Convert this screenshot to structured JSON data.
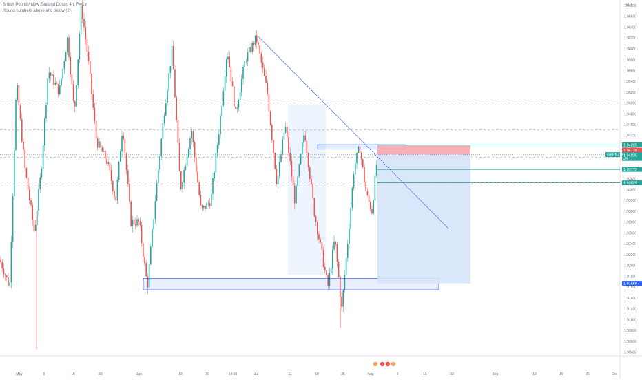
{
  "legend": {
    "title": "British Pound / New Zealand Dollar, 4h, FXCM",
    "indicator": "Round numbers above and below (2)"
  },
  "currency": "NZD",
  "symbol_tag": {
    "symbol": "GBPNZD",
    "price": "1.94045",
    "countdown": "45:17"
  },
  "price_tags": [
    {
      "price": 1.94225,
      "label": "1.94225",
      "color": "#26a69a"
    },
    {
      "price": 1.9413,
      "label": "1.94130",
      "color": "#ef5350"
    },
    {
      "price": 1.94045,
      "label": "1.94045",
      "color": "#26a69a"
    },
    {
      "price": 1.94035,
      "label": "1.94035",
      "color": "#26a69a"
    },
    {
      "price": 1.93772,
      "label": "1.93772",
      "color": "#26a69a"
    },
    {
      "price": 1.93525,
      "label": "1.93525",
      "color": "#26a69a"
    },
    {
      "price": 1.91669,
      "label": "1.91669",
      "color": "#2962ff"
    }
  ],
  "y_ticks": [
    "1.96800",
    "1.96600",
    "1.96400",
    "1.96200",
    "1.96000",
    "1.95800",
    "1.95600",
    "1.95400",
    "1.95200",
    "1.95000",
    "1.94800",
    "1.94600",
    "1.94400",
    "1.94200",
    "1.94000",
    "1.93800",
    "1.93600",
    "1.93400",
    "1.93200",
    "1.93000",
    "1.92800",
    "1.92600",
    "1.92400",
    "1.92200",
    "1.92000",
    "1.91800",
    "1.91600",
    "1.91400",
    "1.91200",
    "1.91000",
    "1.90800",
    "1.90600",
    "1.90400"
  ],
  "x_ticks": [
    "May",
    "9",
    "16",
    "23",
    "Jun",
    "13",
    "20",
    "14:00",
    "Jul",
    "11",
    "18",
    "25",
    "Aug",
    "8",
    "15",
    "22",
    "Sep",
    "12",
    "19",
    "26",
    "Oct"
  ],
  "levels": [
    1.95,
    1.945,
    1.94,
    1.935
  ],
  "trendline": {
    "from": [
      "Jun 30",
      1.9636
    ],
    "to": [
      "Aug 22",
      1.9285
    ]
  },
  "zones": [
    {
      "name": "resistance-zone",
      "price_top": 1.9423,
      "price_bottom": 1.9415,
      "color": "#2962ff"
    },
    {
      "name": "support-zone",
      "price_top": 1.9176,
      "price_bottom": 1.9155,
      "color": "#2962ff"
    }
  ],
  "position": {
    "type": "short",
    "entry": 1.94045,
    "stop": 1.9423,
    "target": 1.91669,
    "stop_color": "#f7a6ad",
    "target_color": "#d6e4fb"
  },
  "highlight_band": {
    "color": "#e3ecfb"
  }
}
